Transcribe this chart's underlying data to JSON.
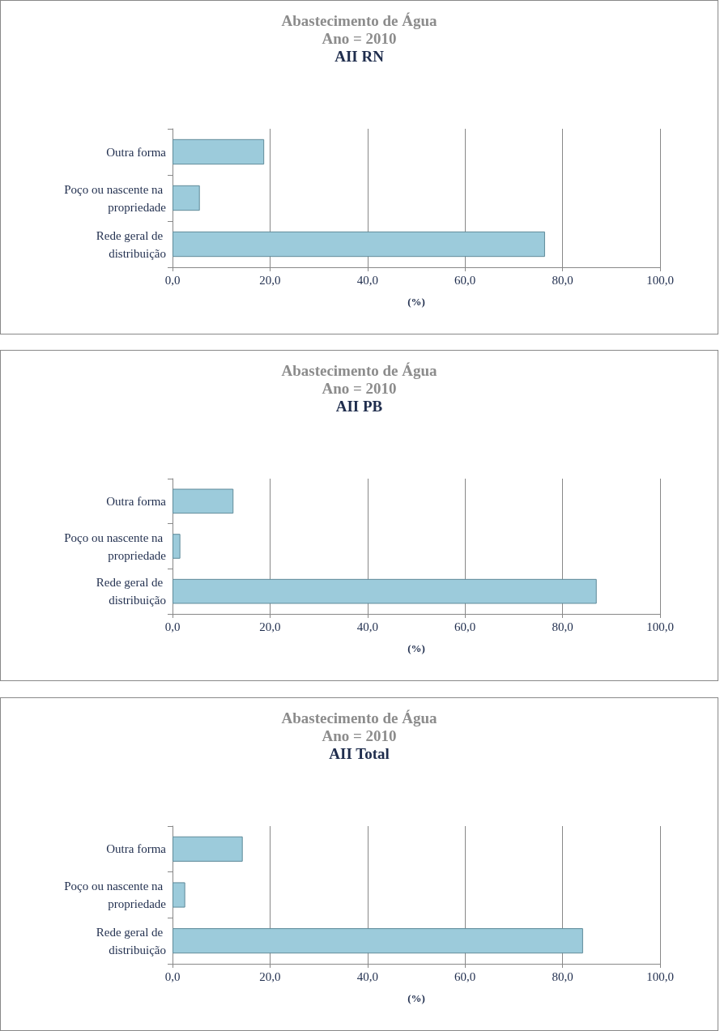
{
  "chart_data": [
    {
      "type": "bar",
      "orientation": "horizontal",
      "title": "Abastecimento de Água\nAno = 2010",
      "subtitle": "AII RN",
      "xlabel": "(%)",
      "categories": [
        "Outra forma",
        "Poço ou nascente na propriedade",
        "Rede geral de distribuição"
      ],
      "values": [
        18.8,
        5.6,
        76.4
      ],
      "color": "#9ccbdb",
      "xlim": [
        0,
        100
      ],
      "xticks": [
        {
          "value": 0,
          "label": "0,0"
        },
        {
          "value": 20,
          "label": "20,0"
        },
        {
          "value": 40,
          "label": "40,0"
        },
        {
          "value": 60,
          "label": "60,0"
        },
        {
          "value": 80,
          "label": "80,0"
        },
        {
          "value": 100,
          "label": "100,0"
        }
      ],
      "grid": "x"
    },
    {
      "type": "bar",
      "orientation": "horizontal",
      "title": "Abastecimento de Água\nAno = 2010",
      "subtitle": "AII PB",
      "xlabel": "(%)",
      "categories": [
        "Outra forma",
        "Poço ou nascente na propriedade",
        "Rede geral de distribuição"
      ],
      "values": [
        12.5,
        1.6,
        87.0
      ],
      "color": "#9ccbdb",
      "xlim": [
        0,
        100
      ],
      "xticks": [
        {
          "value": 0,
          "label": "0,0"
        },
        {
          "value": 20,
          "label": "20,0"
        },
        {
          "value": 40,
          "label": "40,0"
        },
        {
          "value": 60,
          "label": "60,0"
        },
        {
          "value": 80,
          "label": "80,0"
        },
        {
          "value": 100,
          "label": "100,0"
        }
      ],
      "grid": "x"
    },
    {
      "type": "bar",
      "orientation": "horizontal",
      "title": "Abastecimento de Água\nAno = 2010",
      "subtitle": "AII Total",
      "xlabel": "(%)",
      "categories": [
        "Outra forma",
        "Poço ou nascente na propriedade",
        "Rede geral de distribuição"
      ],
      "values": [
        14.4,
        2.6,
        84.2
      ],
      "color": "#9ccbdb",
      "xlim": [
        0,
        100
      ],
      "xticks": [
        {
          "value": 0,
          "label": "0,0"
        },
        {
          "value": 20,
          "label": "20,0"
        },
        {
          "value": 40,
          "label": "40,0"
        },
        {
          "value": 60,
          "label": "60,0"
        },
        {
          "value": 80,
          "label": "80,0"
        },
        {
          "value": 100,
          "label": "100,0"
        }
      ],
      "grid": "x"
    }
  ]
}
